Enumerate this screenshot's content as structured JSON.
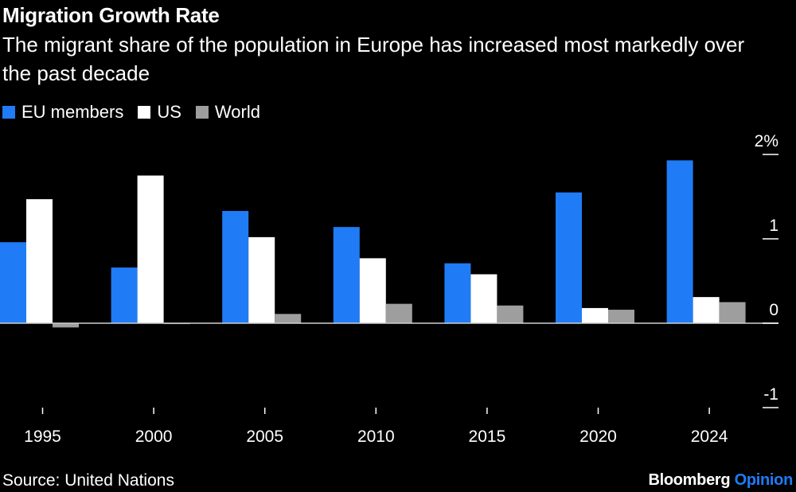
{
  "header": {
    "title": "Migration Growth Rate",
    "subtitle": "The migrant share of the population in Europe has increased most markedly over the past decade"
  },
  "footer": {
    "source": "Source: United Nations",
    "brand": "Bloomberg",
    "brand_suffix": "Opinion"
  },
  "colors": {
    "background": "#000000",
    "eu": "#1f7cf6",
    "us": "#ffffff",
    "world": "#9e9e9e",
    "brand_accent": "#1f7cf6"
  },
  "chart_data": {
    "type": "bar",
    "title": "Migration Growth Rate",
    "categories": [
      "1995",
      "2000",
      "2005",
      "2010",
      "2015",
      "2020",
      "2024"
    ],
    "series": [
      {
        "name": "EU members",
        "color": "#1f7cf6",
        "values": [
          0.96,
          0.66,
          1.33,
          1.14,
          0.71,
          1.55,
          1.93
        ]
      },
      {
        "name": "US",
        "color": "#ffffff",
        "values": [
          1.47,
          1.75,
          1.02,
          0.77,
          0.58,
          0.18,
          0.31
        ]
      },
      {
        "name": "World",
        "color": "#9e9e9e",
        "values": [
          -0.05,
          -0.01,
          0.11,
          0.23,
          0.21,
          0.16,
          0.25
        ]
      }
    ],
    "y_ticks": [
      2,
      1,
      0,
      -1
    ],
    "y_tick_labels": [
      "2%",
      "1",
      "0",
      "-1"
    ],
    "ylim": [
      -1.05,
      2.1
    ],
    "xlabel": "",
    "ylabel": "",
    "legend_position": "top-left",
    "grid": false
  }
}
